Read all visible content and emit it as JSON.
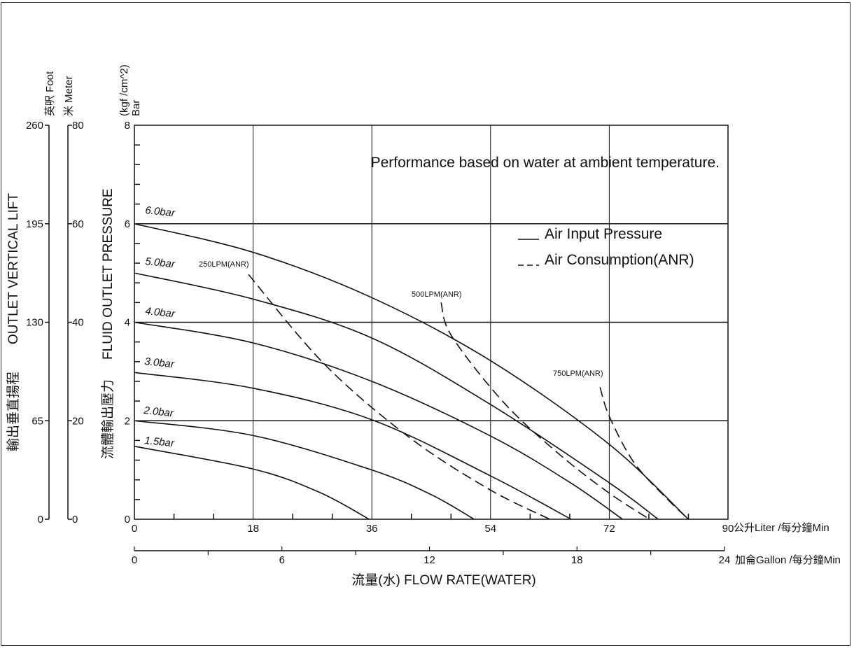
{
  "chart_data": {
    "type": "line",
    "title": "Performance based on water at ambient temperature.",
    "xlabel": "流量(水) FLOW RATE(WATER)",
    "x_axis_primary": {
      "unit": "公升Liter /每分鐘Min",
      "range": [
        0,
        90
      ],
      "ticks": [
        0,
        18,
        36,
        54,
        72,
        90
      ]
    },
    "x_axis_secondary": {
      "unit": "加侖Gallon /每分鐘Min",
      "range": [
        0,
        24
      ],
      "ticks": [
        0,
        6,
        12,
        18,
        24
      ]
    },
    "y_axis_primary": {
      "label": "FLUID OUTLET PRESSURE",
      "label_cn": "流體輸出壓力",
      "unit": "Bar",
      "unit2": "(kgf /cm^2)",
      "range": [
        0,
        8
      ],
      "ticks": [
        0,
        2,
        4,
        6,
        8
      ]
    },
    "y_axis_foot": {
      "unit": "英呎 Foot",
      "range": [
        0,
        260
      ],
      "ticks": [
        0,
        65,
        130,
        195,
        260
      ]
    },
    "y_axis_meter": {
      "unit": "米 Meter",
      "range": [
        0,
        80
      ],
      "ticks": [
        0,
        20,
        40,
        60,
        80
      ]
    },
    "y_axis_lift_label": "OUTLET VERTICAL LIFT",
    "y_axis_lift_label_cn": "輸出垂直揚程",
    "grid": true,
    "legend": {
      "placement": "top-right",
      "entries": [
        {
          "name": "Air Input Pressure",
          "style": "solid"
        },
        {
          "name": "Air Consumption(ANR)",
          "style": "dashed"
        }
      ]
    },
    "series": [
      {
        "name": "6.0bar",
        "style": "solid",
        "points": [
          [
            0,
            6
          ],
          [
            18,
            5.42
          ],
          [
            36,
            4.5
          ],
          [
            54,
            3.22
          ],
          [
            72,
            1.52
          ],
          [
            84,
            0
          ]
        ]
      },
      {
        "name": "5.0bar",
        "style": "solid",
        "points": [
          [
            0,
            5
          ],
          [
            18,
            4.47
          ],
          [
            36,
            3.68
          ],
          [
            54,
            2.33
          ],
          [
            72,
            0.74
          ],
          [
            79.4,
            0
          ]
        ]
      },
      {
        "name": "4.0bar",
        "style": "solid",
        "points": [
          [
            0,
            4
          ],
          [
            18,
            3.58
          ],
          [
            36,
            2.8
          ],
          [
            54,
            1.69
          ],
          [
            66,
            0.75
          ],
          [
            74,
            0
          ]
        ]
      },
      {
        "name": "3.0bar",
        "style": "solid",
        "points": [
          [
            0,
            2.98
          ],
          [
            18,
            2.66
          ],
          [
            36,
            2.02
          ],
          [
            54,
            0.88
          ],
          [
            66.2,
            0
          ]
        ]
      },
      {
        "name": "2.0bar",
        "style": "solid",
        "points": [
          [
            0,
            2
          ],
          [
            18,
            1.7
          ],
          [
            36,
            1.0
          ],
          [
            45,
            0.5
          ],
          [
            51.5,
            0
          ]
        ]
      },
      {
        "name": "1.5bar",
        "style": "solid",
        "points": [
          [
            0,
            1.48
          ],
          [
            18,
            1.02
          ],
          [
            28,
            0.55
          ],
          [
            35.6,
            0
          ]
        ]
      },
      {
        "name": "250LPM(ANR)",
        "style": "dashed",
        "points": [
          [
            17.3,
            4.97
          ],
          [
            28.8,
            3.15
          ],
          [
            41.7,
            1.66
          ],
          [
            53.9,
            0.6
          ],
          [
            63,
            0
          ]
        ]
      },
      {
        "name": "500LPM(ANR)",
        "style": "dashed",
        "points": [
          [
            46.5,
            4.4
          ],
          [
            48.1,
            3.72
          ],
          [
            56,
            2.37
          ],
          [
            64.5,
            1.31
          ],
          [
            72,
            0.53
          ],
          [
            78.1,
            0
          ]
        ]
      },
      {
        "name": "750LPM(ANR)",
        "style": "dashed",
        "points": [
          [
            70.6,
            2.68
          ],
          [
            72,
            2.09
          ],
          [
            75.7,
            1.16
          ],
          [
            80.5,
            0.45
          ],
          [
            84,
            0
          ]
        ]
      }
    ]
  }
}
